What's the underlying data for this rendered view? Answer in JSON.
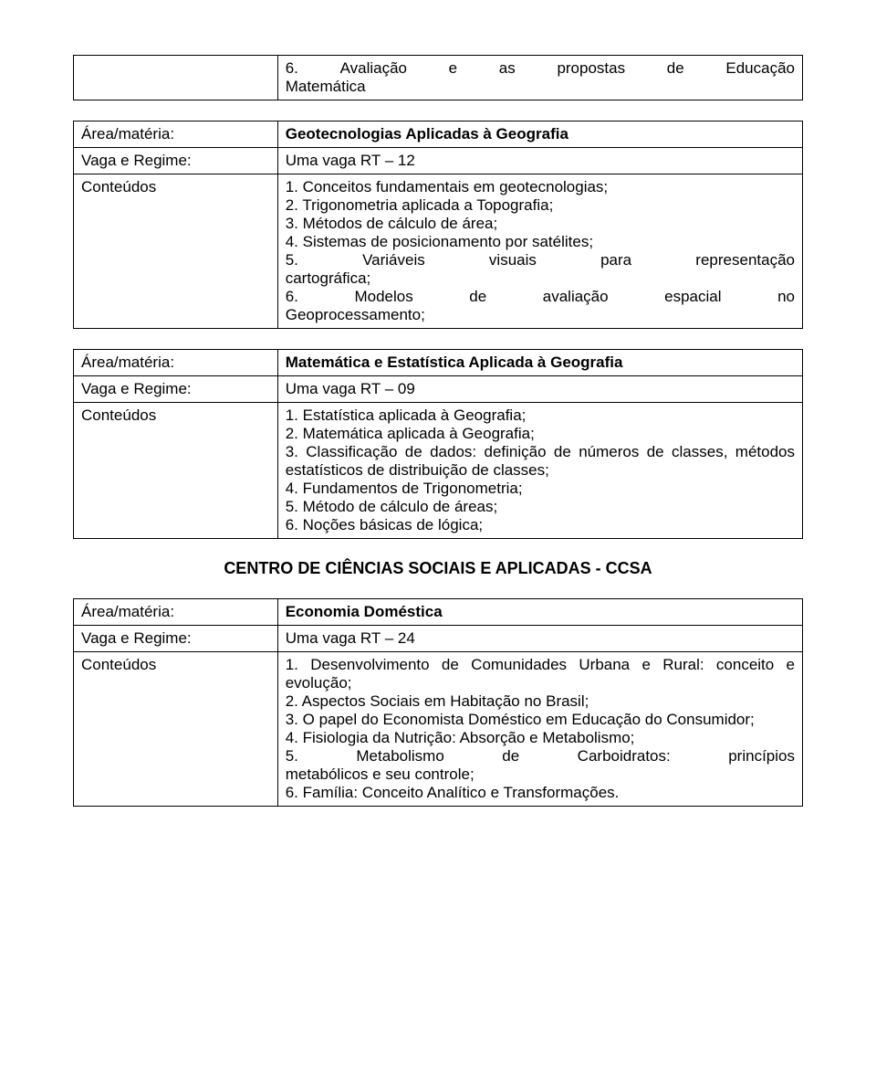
{
  "table1": {
    "left_blank": "",
    "item6": "6. Avaliação e as propostas de Educação Matemática"
  },
  "table2": {
    "row1_left": "Área/matéria:",
    "row1_right": "Geotecnologias Aplicadas à Geografia",
    "row2_left": "Vaga e Regime:",
    "row2_right": "Uma vaga RT – 12",
    "row3_left": "Conteúdos",
    "c1": "1. Conceitos fundamentais em geotecnologias;",
    "c2": "2. Trigonometria aplicada a Topografia;",
    "c3": "3. Métodos de cálculo de área;",
    "c4": "4. Sistemas de posicionamento por satélites;",
    "c5a": "5. Variáveis visuais para representação",
    "c5b": "cartográfica;",
    "c6a": "6. Modelos de avaliação espacial no",
    "c6b": "Geoprocessamento;"
  },
  "table3": {
    "row1_left": "Área/matéria:",
    "row1_right": "Matemática e Estatística Aplicada à Geografia",
    "row2_left": "Vaga e Regime:",
    "row2_right": "Uma vaga RT – 09",
    "row3_left": "Conteúdos",
    "c1": "1. Estatística aplicada à Geografia;",
    "c2": "2. Matemática aplicada à Geografia;",
    "c3": "3. Classificação de dados: definição de números de classes, métodos estatísticos de distribuição de classes;",
    "c4": "4. Fundamentos de Trigonometria;",
    "c5": "5. Método de cálculo de áreas;",
    "c6": "6. Noções básicas de lógica;"
  },
  "heading": "CENTRO DE CIÊNCIAS SOCIAIS E APLICADAS - CCSA",
  "table4": {
    "row1_left": "Área/matéria:",
    "row1_right": "Economia Doméstica",
    "row2_left": "Vaga e Regime:",
    "row2_right": "Uma vaga RT – 24",
    "row3_left": "Conteúdos",
    "c1": "1. Desenvolvimento de Comunidades Urbana e Rural: conceito e evolução;",
    "c2": "2. Aspectos Sociais em Habitação no Brasil;",
    "c3": "3. O papel do Economista Doméstico em Educação do Consumidor;",
    "c4": "4. Fisiologia da Nutrição: Absorção e Metabolismo;",
    "c5a": "5. Metabolismo de Carboidratos: princípios",
    "c5b": "metabólicos e seu controle;",
    "c6": "6. Família: Conceito Analítico e Transformações."
  }
}
